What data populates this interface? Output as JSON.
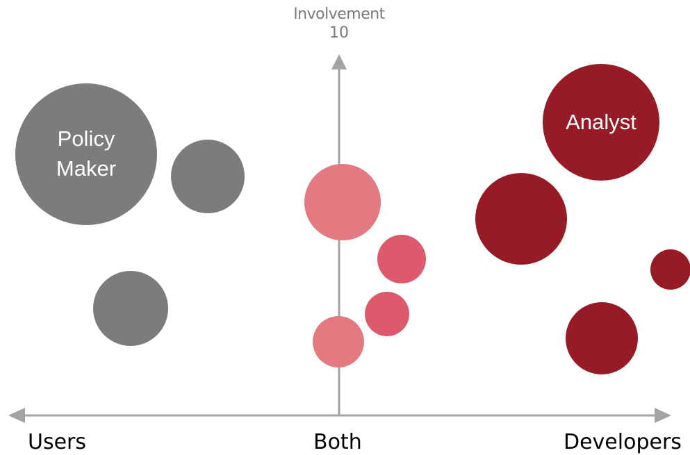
{
  "axes": {
    "y_title": "Involvement",
    "y_max_label": "10",
    "x_left": "Users",
    "x_center": "Both",
    "x_right": "Developers"
  },
  "colors": {
    "axis": "#a3a3a3",
    "users": "#7d7c7a",
    "both_light": "#e37a82",
    "both_mid": "#dc5a6c",
    "developers": "#971b27",
    "text_dark": "#000000",
    "text_light": "#ffffff",
    "y_title": "#7a7a7a"
  },
  "bubbles": [
    {
      "group": "users",
      "label": "Policy Maker",
      "lines": [
        "Policy",
        "Maker"
      ]
    },
    {
      "group": "users",
      "label": ""
    },
    {
      "group": "users",
      "label": ""
    },
    {
      "group": "both_light",
      "label": ""
    },
    {
      "group": "both_mid",
      "label": ""
    },
    {
      "group": "both_mid",
      "label": ""
    },
    {
      "group": "both_light",
      "label": ""
    },
    {
      "group": "developers",
      "label": "Analyst",
      "lines": [
        "Analyst"
      ]
    },
    {
      "group": "developers",
      "label": ""
    },
    {
      "group": "developers",
      "label": ""
    },
    {
      "group": "developers",
      "label": ""
    }
  ]
}
